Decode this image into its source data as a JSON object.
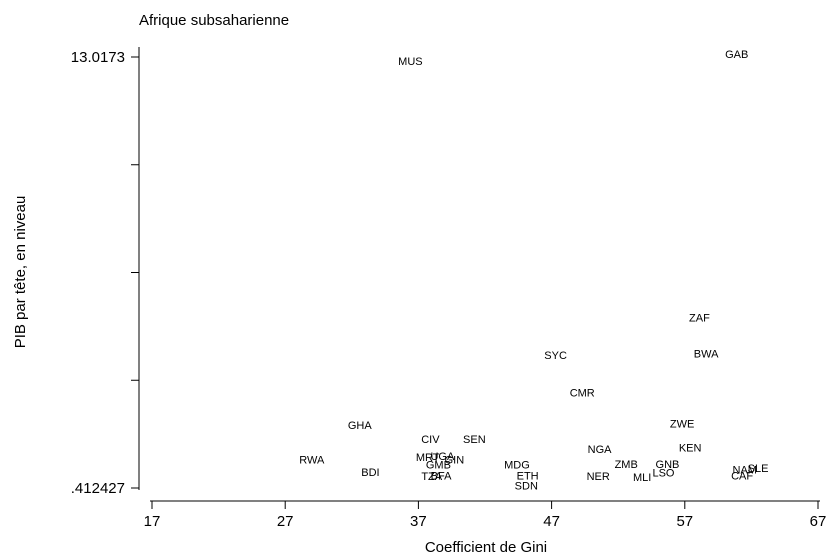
{
  "chart_data": {
    "type": "scatter",
    "title": "Afrique subsaharienne",
    "xlabel": "Coefficient de Gini",
    "ylabel": "PIB par tête, en niveau",
    "xlim": [
      17,
      67
    ],
    "ylim": [
      0.412427,
      13.0173
    ],
    "xticks": [
      17,
      27,
      37,
      47,
      57,
      67
    ],
    "yticks": [
      {
        "value": 0.412427,
        "label": ".412427"
      },
      {
        "value": 3.563645,
        "label": ""
      },
      {
        "value": 6.714864,
        "label": ""
      },
      {
        "value": 9.866082,
        "label": ""
      },
      {
        "value": 13.0173,
        "label": "13.0173"
      }
    ],
    "grid": false,
    "points": [
      {
        "label": "MUS",
        "x": 36.4,
        "y": 12.9
      },
      {
        "label": "GAB",
        "x": 60.9,
        "y": 13.1
      },
      {
        "label": "ZAF",
        "x": 58.1,
        "y": 5.4
      },
      {
        "label": "BWA",
        "x": 58.6,
        "y": 4.35
      },
      {
        "label": "SYC",
        "x": 47.3,
        "y": 4.3
      },
      {
        "label": "CMR",
        "x": 49.3,
        "y": 3.2
      },
      {
        "label": "ZWE",
        "x": 56.8,
        "y": 2.3
      },
      {
        "label": "GHA",
        "x": 32.6,
        "y": 2.25
      },
      {
        "label": "CIV",
        "x": 37.9,
        "y": 1.85
      },
      {
        "label": "SEN",
        "x": 41.2,
        "y": 1.85
      },
      {
        "label": "KEN",
        "x": 57.4,
        "y": 1.6
      },
      {
        "label": "NGA",
        "x": 50.6,
        "y": 1.55
      },
      {
        "label": "RWA",
        "x": 29.0,
        "y": 1.25
      },
      {
        "label": "MRT",
        "x": 37.7,
        "y": 1.32
      },
      {
        "label": "UGA",
        "x": 38.8,
        "y": 1.35
      },
      {
        "label": "GIN",
        "x": 39.7,
        "y": 1.25
      },
      {
        "label": "GMB",
        "x": 38.5,
        "y": 1.1
      },
      {
        "label": "MDG",
        "x": 44.4,
        "y": 1.1
      },
      {
        "label": "ZMB",
        "x": 52.6,
        "y": 1.12
      },
      {
        "label": "GNB",
        "x": 55.7,
        "y": 1.12
      },
      {
        "label": "BDI",
        "x": 33.4,
        "y": 0.88
      },
      {
        "label": "NAM",
        "x": 61.5,
        "y": 0.95
      },
      {
        "label": "SLE",
        "x": 62.5,
        "y": 1.0
      },
      {
        "label": "LSO",
        "x": 55.4,
        "y": 0.86
      },
      {
        "label": "ETH",
        "x": 45.2,
        "y": 0.78
      },
      {
        "label": "TZA",
        "x": 38.0,
        "y": 0.76
      },
      {
        "label": "BFA",
        "x": 38.7,
        "y": 0.78
      },
      {
        "label": "NER",
        "x": 50.5,
        "y": 0.76
      },
      {
        "label": "MLI",
        "x": 53.8,
        "y": 0.73
      },
      {
        "label": "CAF",
        "x": 61.3,
        "y": 0.78
      },
      {
        "label": "SDN",
        "x": 45.1,
        "y": 0.48
      }
    ]
  }
}
